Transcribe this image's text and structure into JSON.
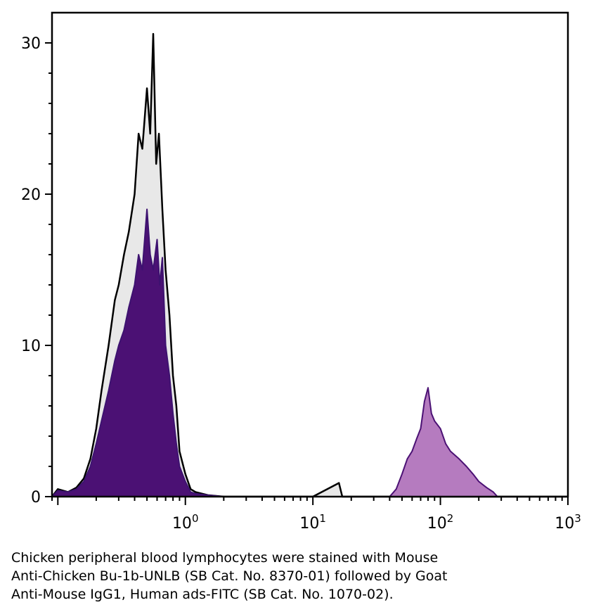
{
  "chart_data": {
    "type": "area",
    "title": "",
    "xlabel": "",
    "ylabel": "",
    "x_scale": "log",
    "xlim": [
      0.09,
      1000
    ],
    "ylim": [
      0,
      32
    ],
    "grid": false,
    "x_ticks": [
      {
        "value": 1,
        "base": "10",
        "exp": "0"
      },
      {
        "value": 10,
        "base": "10",
        "exp": "1"
      },
      {
        "value": 100,
        "base": "10",
        "exp": "2"
      },
      {
        "value": 1000,
        "base": "10",
        "exp": "3"
      }
    ],
    "y_ticks": [
      {
        "value": 0,
        "label": "0"
      },
      {
        "value": 10,
        "label": "10"
      },
      {
        "value": 20,
        "label": "20"
      },
      {
        "value": 30,
        "label": "30"
      }
    ],
    "series": [
      {
        "style": "unfilled-outline",
        "outline_color": "#000000",
        "fill_color": "#e6e6e6",
        "x": [
          0.09,
          0.1,
          0.12,
          0.14,
          0.16,
          0.18,
          0.2,
          0.22,
          0.25,
          0.28,
          0.3,
          0.33,
          0.36,
          0.4,
          0.43,
          0.46,
          0.5,
          0.53,
          0.56,
          0.59,
          0.62,
          0.66,
          0.7,
          0.75,
          0.8,
          0.85,
          0.9,
          1.0,
          1.1,
          1.2,
          1.5,
          2,
          3,
          5,
          10,
          16,
          17,
          20,
          30,
          1000
        ],
        "values": [
          0,
          0.5,
          0.3,
          0.6,
          1.2,
          2.5,
          4.5,
          7,
          10,
          13,
          14,
          16,
          17.5,
          20,
          24,
          23,
          27,
          24,
          30.6,
          22,
          24,
          19,
          15,
          12,
          8,
          6,
          3,
          1.5,
          0.5,
          0.3,
          0.1,
          0,
          0,
          0,
          0,
          0.9,
          0,
          0,
          0,
          0
        ]
      },
      {
        "style": "filled",
        "outline_color": "#3d1270",
        "fill_color": "#4b1174",
        "x": [
          0.09,
          0.1,
          0.12,
          0.14,
          0.16,
          0.18,
          0.2,
          0.22,
          0.25,
          0.28,
          0.3,
          0.33,
          0.36,
          0.4,
          0.43,
          0.46,
          0.5,
          0.53,
          0.56,
          0.6,
          0.63,
          0.66,
          0.7,
          0.75,
          0.8,
          0.85,
          0.9,
          1.0,
          1.1,
          1.2,
          1.5,
          2,
          5,
          1000
        ],
        "values": [
          0,
          0.4,
          0.3,
          0.5,
          1,
          2,
          3.5,
          5,
          7,
          9,
          10,
          11,
          12.5,
          14,
          16,
          15,
          19,
          16,
          15,
          17,
          14,
          15.8,
          10,
          8,
          5.5,
          3.5,
          2,
          1,
          0.3,
          0.2,
          0.1,
          0,
          0,
          0
        ]
      },
      {
        "style": "filled",
        "outline_color": "#4b1174",
        "fill_color": "#b57bbf",
        "x": [
          0.09,
          30,
          40,
          45,
          50,
          55,
          60,
          65,
          70,
          75,
          80,
          85,
          90,
          100,
          110,
          120,
          140,
          160,
          180,
          200,
          230,
          260,
          280,
          1000
        ],
        "values": [
          0,
          0,
          0,
          0.5,
          1.5,
          2.5,
          3,
          3.8,
          4.5,
          6.3,
          7.2,
          5.5,
          5,
          4.5,
          3.5,
          3,
          2.5,
          2,
          1.5,
          1,
          0.6,
          0.3,
          0,
          0
        ]
      }
    ]
  },
  "caption": {
    "lines": [
      "Chicken peripheral blood lymphocytes were stained with Mouse",
      "Anti-Chicken Bu-1b-UNLB (SB Cat. No. 8370-01) followed by Goat",
      "Anti-Mouse IgG1, Human ads-FITC (SB Cat. No. 1070-02)."
    ]
  }
}
